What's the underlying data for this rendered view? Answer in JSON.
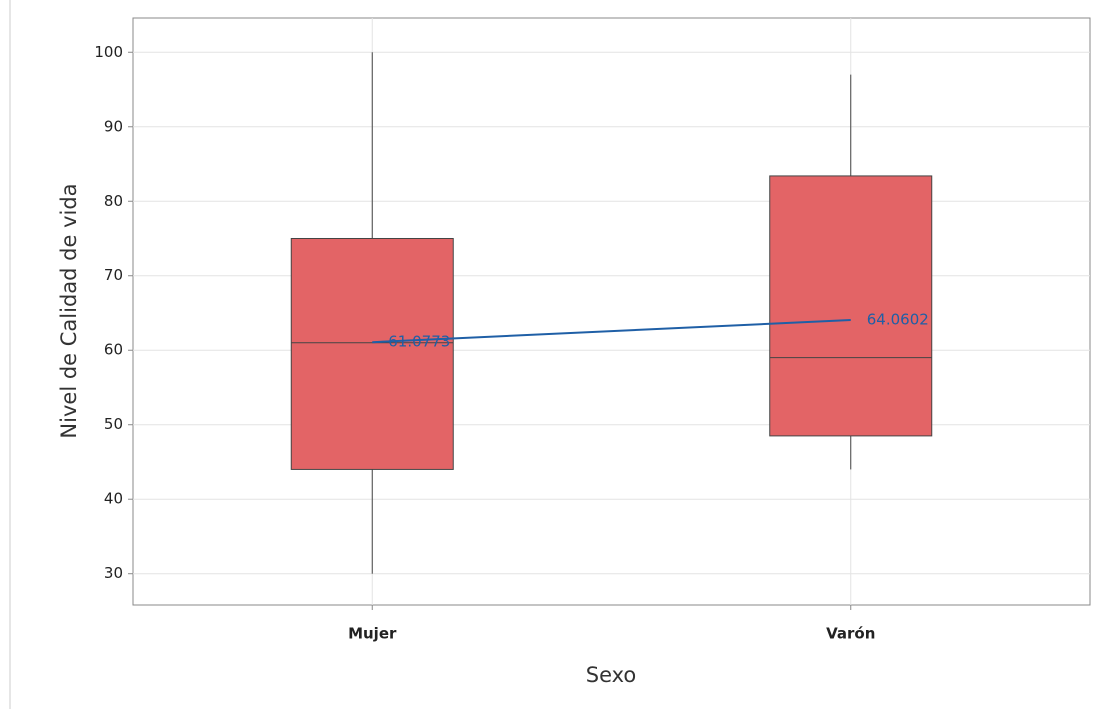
{
  "chart_data": {
    "type": "box",
    "x_label": "Sexo",
    "y_label": "Nivel de Calidad de vida",
    "categories": [
      "Mujer",
      "Varón"
    ],
    "boxes": [
      {
        "min": 30,
        "q1": 44,
        "median": 61,
        "q3": 75,
        "max": 100
      },
      {
        "min": 44,
        "q1": 48.5,
        "median": 59,
        "q3": 83.4,
        "max": 97
      }
    ],
    "means": [
      61.0773,
      64.0602
    ],
    "color": "#e36466",
    "mean_color": "#1f5fa6",
    "ylim": [
      25.8,
      104.6
    ],
    "yticks": [
      30,
      40,
      50,
      60,
      70,
      80,
      90,
      100
    ],
    "grid": true
  }
}
